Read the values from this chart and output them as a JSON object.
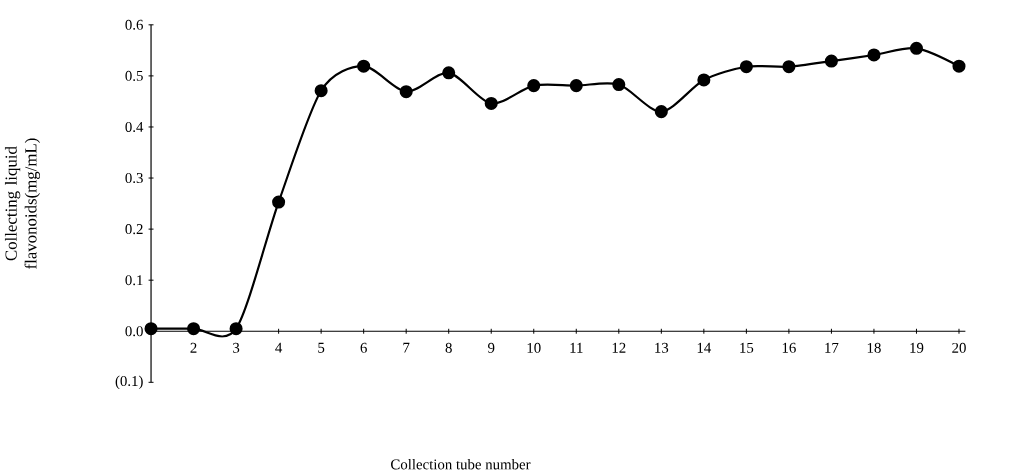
{
  "chart_data": {
    "type": "line",
    "xlabel": "Collection tube number",
    "ylabel": "Collecting liquid flavonoids(mg/mL)",
    "categories": [
      null,
      "2",
      "3",
      "4",
      "5",
      "6",
      "7",
      "8",
      "9",
      "10",
      "11",
      "12",
      "13",
      "14",
      "15",
      "16",
      "17",
      "18",
      "19",
      "20"
    ],
    "series": [
      {
        "color": "#000000",
        "values": [
          0.005,
          0.005,
          0.005,
          0.253,
          0.471,
          0.519,
          0.469,
          0.506,
          0.446,
          0.481,
          0.481,
          0.483,
          0.43,
          0.492,
          0.518,
          0.518,
          0.529,
          0.541,
          0.554,
          0.519
        ]
      }
    ],
    "ylim": [
      -0.1,
      0.6
    ],
    "yticks": [
      {
        "value": -0.1,
        "label": "(0.1)"
      },
      {
        "value": 0,
        "label": "0.0"
      },
      0.1,
      0.2,
      0.3,
      0.4,
      0.5,
      0.6
    ],
    "marker": "circle",
    "line_style": "solid",
    "grid": false
  }
}
